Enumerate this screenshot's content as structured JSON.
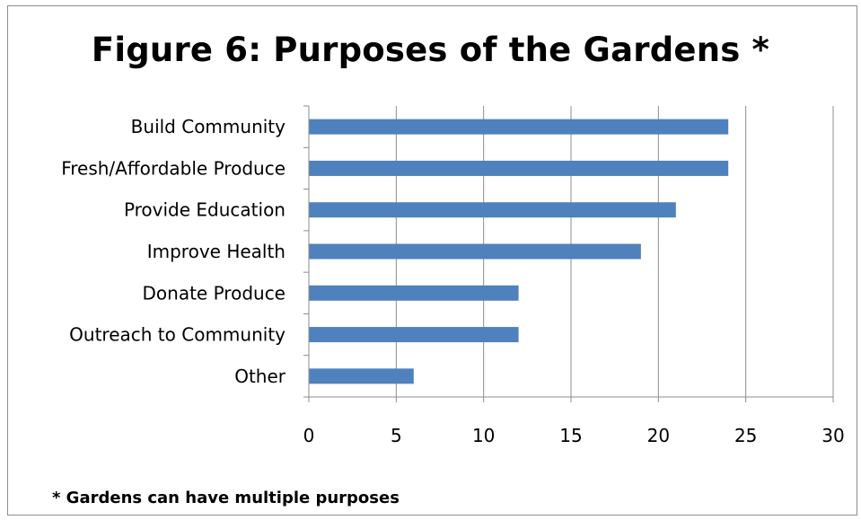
{
  "chart_data": {
    "type": "bar",
    "orientation": "horizontal",
    "title": "Figure 6:  Purposes of the Gardens *",
    "categories": [
      "Build Community",
      "Fresh/Affordable Produce",
      "Provide Education",
      "Improve Health",
      "Donate Produce",
      "Outreach to Community",
      "Other"
    ],
    "values": [
      24,
      24,
      21,
      19,
      12,
      12,
      6
    ],
    "xlim": [
      0,
      30
    ],
    "xticks": [
      0,
      5,
      10,
      15,
      20,
      25,
      30
    ],
    "grid": true,
    "legend": "none",
    "bar_color": "#4f81bd",
    "footnote": "* Gardens can have multiple purposes"
  }
}
